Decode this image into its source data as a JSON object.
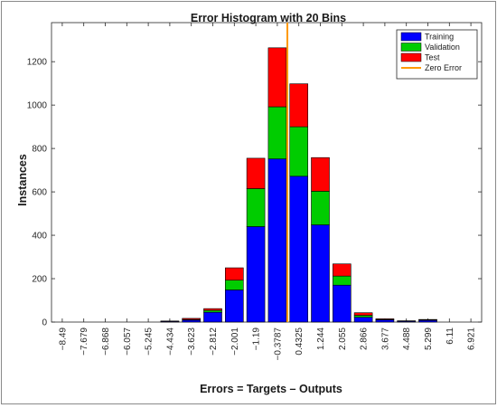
{
  "chart_data": {
    "type": "bar",
    "stacked": true,
    "title": "Error Histogram with 20 Bins",
    "xlabel": "Errors = Targets – Outputs",
    "ylabel": "Instances",
    "categories": [
      "−8.49",
      "−7.679",
      "−6.868",
      "−6.057",
      "−5.245",
      "−4.434",
      "−3.623",
      "−2.812",
      "−2.001",
      "−1.19",
      "−0.3787",
      "0.4325",
      "1.244",
      "2.055",
      "2.866",
      "3.677",
      "4.488",
      "5.299",
      "6.11",
      "6.921"
    ],
    "series": [
      {
        "name": "Training",
        "color": "#0000ff",
        "values": [
          0,
          0,
          0,
          0,
          0,
          3,
          9,
          45,
          148,
          440,
          752,
          672,
          448,
          170,
          22,
          10,
          4,
          8,
          0,
          0
        ]
      },
      {
        "name": "Validation",
        "color": "#00cc00",
        "values": [
          0,
          0,
          0,
          0,
          0,
          1,
          3,
          9,
          45,
          175,
          240,
          228,
          155,
          42,
          9,
          2,
          1,
          2,
          0,
          0
        ]
      },
      {
        "name": "Test",
        "color": "#ff0000",
        "values": [
          0,
          0,
          0,
          0,
          0,
          1,
          5,
          8,
          57,
          140,
          272,
          198,
          155,
          56,
          12,
          3,
          1,
          2,
          0,
          0
        ]
      }
    ],
    "zero_error": {
      "name": "Zero Error",
      "color": "#ff9900",
      "x": 0
    },
    "ylim": [
      0,
      1380
    ],
    "yticks": [
      0,
      200,
      400,
      600,
      800,
      1000,
      1200
    ],
    "grid": false,
    "legend_position": "top-right"
  }
}
